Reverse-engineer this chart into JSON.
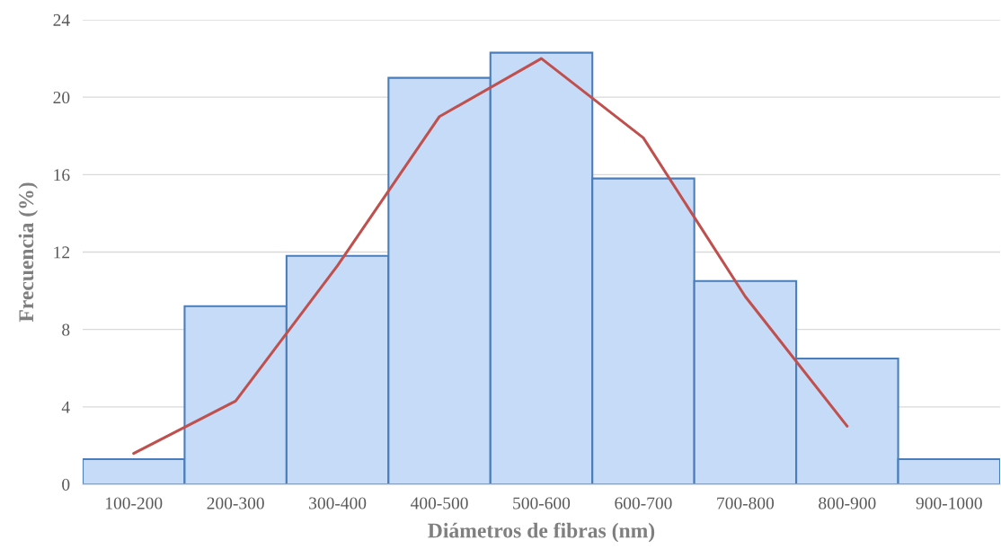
{
  "chart_data": {
    "type": "bar",
    "xlabel": "Diámetros de fibras (nm)",
    "ylabel": "Frecuencia (%)",
    "categories": [
      "100-200",
      "200-300",
      "300-400",
      "400-500",
      "500-600",
      "600-700",
      "700-800",
      "800-900",
      "900-1000"
    ],
    "values": [
      1.3,
      9.2,
      11.8,
      21.0,
      22.3,
      15.8,
      10.5,
      6.5,
      1.3
    ],
    "color": "#c6dbf7",
    "series": [
      {
        "type": "line",
        "color": "#c0504d",
        "values": [
          1.6,
          4.3,
          11.3,
          19.0,
          22.0,
          17.9,
          9.7,
          3.0,
          null
        ]
      }
    ],
    "ylim": [
      0,
      24
    ],
    "yticks": [
      0,
      4,
      8,
      12,
      16,
      20,
      24
    ],
    "grid": "y",
    "legend": false
  }
}
